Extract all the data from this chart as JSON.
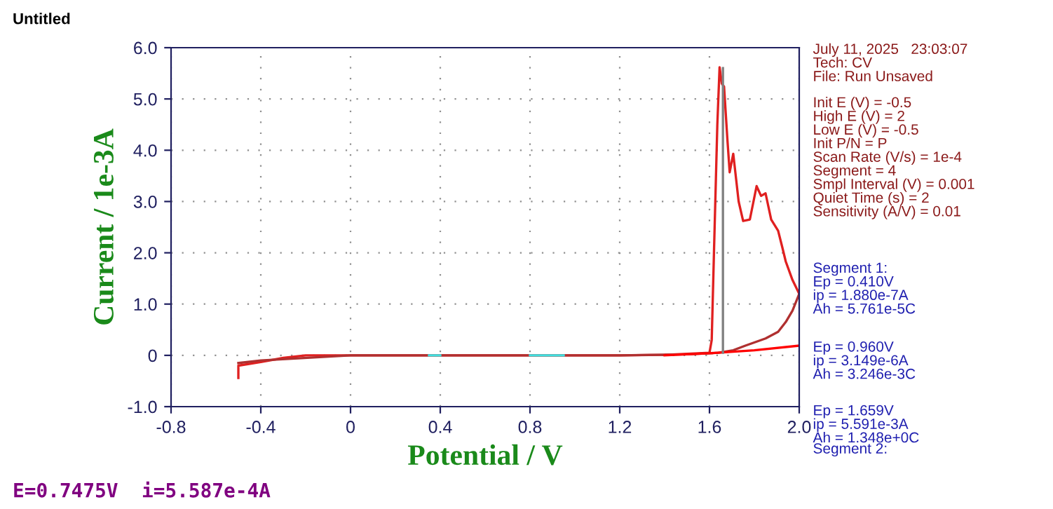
{
  "chart_data": {
    "type": "line",
    "xlabel": "Potential / V",
    "ylabel": "Current / 1e-3A",
    "xlim": [
      -0.8,
      2.0
    ],
    "ylim": [
      -1.0,
      6.0
    ],
    "xticks": [
      {
        "value": -0.8,
        "label": "-0.8"
      },
      {
        "value": -0.4,
        "label": "-0.4"
      },
      0,
      0.4,
      0.8,
      1.2,
      1.6,
      {
        "value": 2.0,
        "label": "2.0"
      }
    ],
    "yticks": [
      {
        "value": -1.0,
        "label": "-1.0"
      },
      0,
      {
        "value": 1.0,
        "label": "1.0"
      },
      {
        "value": 2.0,
        "label": "2.0"
      },
      {
        "value": 3.0,
        "label": "3.0"
      },
      {
        "value": 4.0,
        "label": "4.0"
      },
      {
        "value": 5.0,
        "label": "5.0"
      },
      {
        "value": 6.0,
        "label": "6.0"
      }
    ],
    "grid": true,
    "marker": "none",
    "line_style": "solid",
    "series": [
      {
        "color": "#e02020",
        "x": [
          -0.5,
          -0.5,
          -0.4,
          -0.3,
          -0.2,
          0,
          0.4,
          0.8,
          1.2,
          1.4,
          1.5,
          1.6,
          1.61,
          1.62,
          1.635,
          1.645,
          1.655,
          1.665,
          1.68,
          1.69,
          1.706,
          1.73,
          1.75,
          1.78,
          1.81,
          1.83,
          1.85,
          1.875,
          1.906,
          1.925,
          1.94,
          1.97,
          2.0
        ],
        "values": [
          -0.44,
          -0.2,
          -0.13,
          -0.05,
          0,
          0,
          0,
          0,
          0,
          0.01,
          0.03,
          0.05,
          0.3,
          2.0,
          4.5,
          5.62,
          5.3,
          5.24,
          4.2,
          3.57,
          3.93,
          3.0,
          2.62,
          2.65,
          3.3,
          3.11,
          3.16,
          2.65,
          2.43,
          2.1,
          1.83,
          1.47,
          1.2
        ]
      },
      {
        "color": "#b03030",
        "x": [
          2.0,
          1.97,
          1.94,
          1.906,
          1.85,
          1.76,
          1.706,
          1.64,
          1.5,
          1.2,
          0.8,
          0,
          -0.4,
          -0.5
        ],
        "values": [
          1.2,
          0.87,
          0.65,
          0.46,
          0.33,
          0.19,
          0.1,
          0.05,
          0.02,
          0,
          0,
          0,
          -0.1,
          -0.15
        ]
      },
      {
        "color": "#ff0000",
        "x": [
          1.4,
          1.6,
          1.8,
          2.0
        ],
        "values": [
          0,
          0.04,
          0.1,
          0.19
        ]
      },
      {
        "color": "#808080",
        "x": [
          1.66,
          1.66
        ],
        "values": [
          5.6,
          0.05
        ]
      },
      {
        "color": "#40e0e0",
        "x": [
          0.35,
          0.4,
          0.6,
          0.8,
          0.95
        ],
        "values": [
          0,
          0,
          null,
          0,
          0
        ]
      }
    ],
    "annotations": [
      "Untitled",
      "July 11, 2025   23:03:07\nTech: CV\nFile: Run Unsaved",
      "Init E (V) = -0.5\nHigh E (V) = 2\nLow E (V) = -0.5\nInit P/N = P\nScan Rate (V/s) = 1e-4\nSegment = 4\nSmpl Interval (V) = 0.001\nQuiet Time (s) = 2\nSensitivity (A/V) = 0.01",
      "Segment 1:\nEp = 0.410V\nip = 1.880e-7A\nAh = 5.761e-5C",
      "Ep = 0.960V\nip = 3.149e-6A\nAh = 3.246e-3C",
      "Ep = 1.659V\nip = 5.591e-3A\nAh = 1.348e+0C",
      "Segment 2:",
      "E=0.7475V  i=5.587e-4A"
    ]
  }
}
